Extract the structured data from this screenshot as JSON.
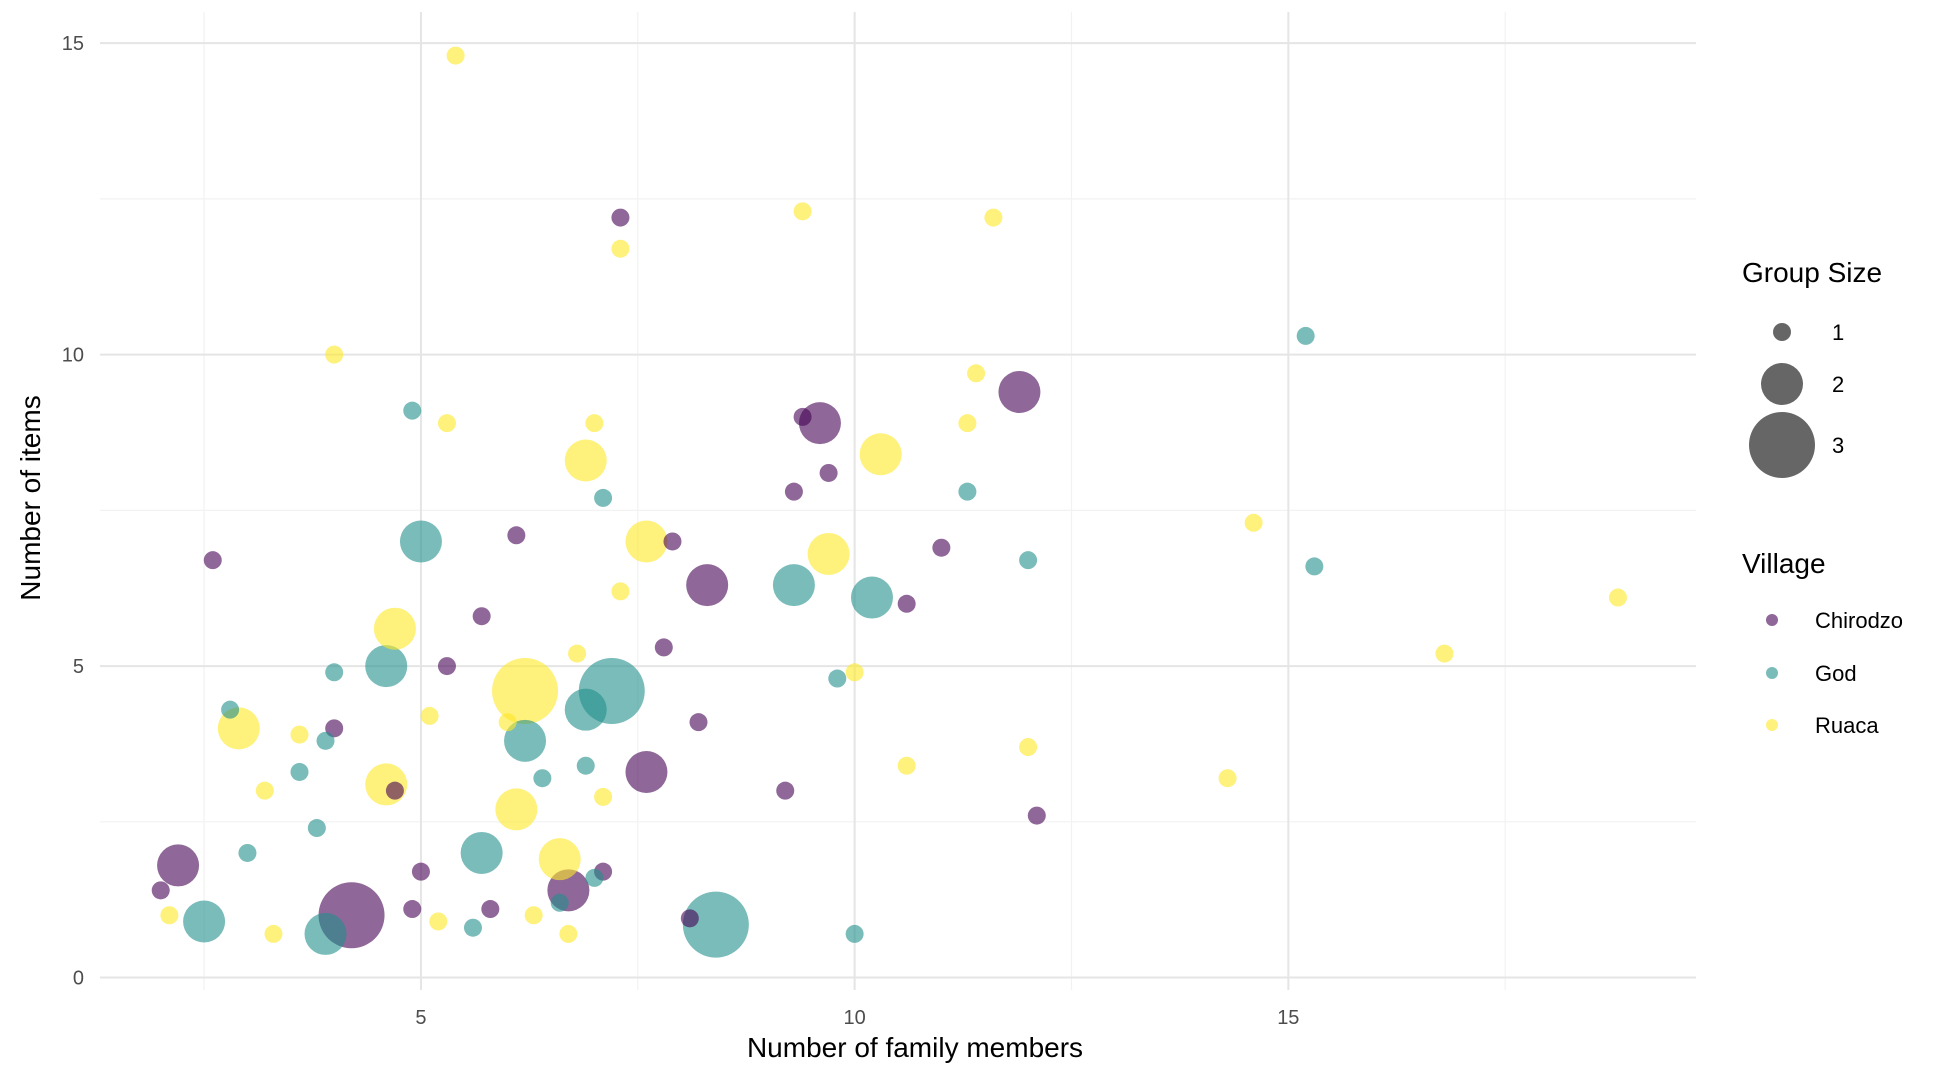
{
  "chart_data": {
    "type": "scatter",
    "title": "",
    "xlabel": "Number of family members",
    "ylabel": "Number of items",
    "xlim": [
      1.3,
      19.7
    ],
    "ylim": [
      -0.2,
      15.5
    ],
    "x_ticks": [
      5,
      10,
      15
    ],
    "y_ticks": [
      0,
      5,
      10,
      15
    ],
    "grid": true,
    "legend_position": "right",
    "size_legend": {
      "title": "Group Size",
      "entries": [
        1,
        2,
        3
      ]
    },
    "color_legend": {
      "title": "Village",
      "entries": [
        "Chirodzo",
        "God",
        "Ruaca"
      ]
    },
    "colors": {
      "Chirodzo": "#440154",
      "God": "#21908C",
      "Ruaca": "#FDE725"
    },
    "opacity": 0.6,
    "series": [
      {
        "name": "Chirodzo",
        "points": [
          {
            "x": 2.0,
            "y": 1.4,
            "size": 1
          },
          {
            "x": 2.2,
            "y": 1.8,
            "size": 2
          },
          {
            "x": 2.6,
            "y": 6.7,
            "size": 1
          },
          {
            "x": 4.0,
            "y": 4.0,
            "size": 1
          },
          {
            "x": 4.2,
            "y": 1.0,
            "size": 3
          },
          {
            "x": 4.7,
            "y": 3.0,
            "size": 1
          },
          {
            "x": 4.9,
            "y": 1.1,
            "size": 1
          },
          {
            "x": 5.0,
            "y": 1.7,
            "size": 1
          },
          {
            "x": 5.3,
            "y": 5.0,
            "size": 1
          },
          {
            "x": 5.7,
            "y": 5.8,
            "size": 1
          },
          {
            "x": 5.8,
            "y": 1.1,
            "size": 1
          },
          {
            "x": 6.1,
            "y": 7.1,
            "size": 1
          },
          {
            "x": 6.7,
            "y": 1.4,
            "size": 2
          },
          {
            "x": 7.1,
            "y": 1.7,
            "size": 1
          },
          {
            "x": 7.3,
            "y": 12.2,
            "size": 1
          },
          {
            "x": 7.6,
            "y": 3.3,
            "size": 2
          },
          {
            "x": 7.8,
            "y": 5.3,
            "size": 1
          },
          {
            "x": 7.9,
            "y": 7.0,
            "size": 1
          },
          {
            "x": 8.1,
            "y": 0.95,
            "size": 1
          },
          {
            "x": 8.2,
            "y": 4.1,
            "size": 1
          },
          {
            "x": 8.3,
            "y": 6.3,
            "size": 2
          },
          {
            "x": 9.2,
            "y": 3.0,
            "size": 1
          },
          {
            "x": 9.3,
            "y": 7.8,
            "size": 1
          },
          {
            "x": 9.4,
            "y": 9.0,
            "size": 1
          },
          {
            "x": 9.6,
            "y": 8.9,
            "size": 2
          },
          {
            "x": 9.7,
            "y": 8.1,
            "size": 1
          },
          {
            "x": 10.6,
            "y": 6.0,
            "size": 1
          },
          {
            "x": 11.0,
            "y": 6.9,
            "size": 1
          },
          {
            "x": 11.9,
            "y": 9.4,
            "size": 2
          },
          {
            "x": 12.1,
            "y": 2.6,
            "size": 1
          }
        ]
      },
      {
        "name": "God",
        "points": [
          {
            "x": 2.5,
            "y": 0.9,
            "size": 2
          },
          {
            "x": 2.8,
            "y": 4.3,
            "size": 1
          },
          {
            "x": 3.0,
            "y": 2.0,
            "size": 1
          },
          {
            "x": 3.6,
            "y": 3.3,
            "size": 1
          },
          {
            "x": 3.8,
            "y": 2.4,
            "size": 1
          },
          {
            "x": 3.9,
            "y": 3.8,
            "size": 1
          },
          {
            "x": 3.9,
            "y": 0.7,
            "size": 2
          },
          {
            "x": 4.0,
            "y": 4.9,
            "size": 1
          },
          {
            "x": 4.6,
            "y": 5.0,
            "size": 2
          },
          {
            "x": 4.9,
            "y": 9.1,
            "size": 1
          },
          {
            "x": 5.0,
            "y": 7.0,
            "size": 2
          },
          {
            "x": 5.6,
            "y": 0.8,
            "size": 1
          },
          {
            "x": 5.7,
            "y": 2.0,
            "size": 2
          },
          {
            "x": 6.2,
            "y": 3.8,
            "size": 2
          },
          {
            "x": 6.4,
            "y": 3.2,
            "size": 1
          },
          {
            "x": 6.6,
            "y": 1.2,
            "size": 1
          },
          {
            "x": 6.9,
            "y": 4.3,
            "size": 2
          },
          {
            "x": 6.9,
            "y": 3.4,
            "size": 1
          },
          {
            "x": 7.0,
            "y": 1.6,
            "size": 1
          },
          {
            "x": 7.1,
            "y": 7.7,
            "size": 1
          },
          {
            "x": 7.2,
            "y": 4.6,
            "size": 3
          },
          {
            "x": 8.4,
            "y": 0.85,
            "size": 3
          },
          {
            "x": 9.3,
            "y": 6.3,
            "size": 2
          },
          {
            "x": 9.8,
            "y": 4.8,
            "size": 1
          },
          {
            "x": 10.0,
            "y": 0.7,
            "size": 1
          },
          {
            "x": 10.2,
            "y": 6.1,
            "size": 2
          },
          {
            "x": 11.3,
            "y": 7.8,
            "size": 1
          },
          {
            "x": 12.0,
            "y": 6.7,
            "size": 1
          },
          {
            "x": 15.2,
            "y": 10.3,
            "size": 1
          },
          {
            "x": 15.3,
            "y": 6.6,
            "size": 1
          }
        ]
      },
      {
        "name": "Ruaca",
        "points": [
          {
            "x": 2.1,
            "y": 1.0,
            "size": 1
          },
          {
            "x": 2.9,
            "y": 4.0,
            "size": 2
          },
          {
            "x": 3.2,
            "y": 3.0,
            "size": 1
          },
          {
            "x": 3.3,
            "y": 0.7,
            "size": 1
          },
          {
            "x": 3.6,
            "y": 3.9,
            "size": 1
          },
          {
            "x": 4.0,
            "y": 10.0,
            "size": 1
          },
          {
            "x": 4.6,
            "y": 3.1,
            "size": 2
          },
          {
            "x": 4.7,
            "y": 5.6,
            "size": 2
          },
          {
            "x": 5.1,
            "y": 4.2,
            "size": 1
          },
          {
            "x": 5.2,
            "y": 0.9,
            "size": 1
          },
          {
            "x": 5.3,
            "y": 8.9,
            "size": 1
          },
          {
            "x": 5.4,
            "y": 14.8,
            "size": 1
          },
          {
            "x": 6.0,
            "y": 4.1,
            "size": 1
          },
          {
            "x": 6.1,
            "y": 2.7,
            "size": 2
          },
          {
            "x": 6.2,
            "y": 4.6,
            "size": 3
          },
          {
            "x": 6.3,
            "y": 1.0,
            "size": 1
          },
          {
            "x": 6.6,
            "y": 1.9,
            "size": 2
          },
          {
            "x": 6.7,
            "y": 0.7,
            "size": 1
          },
          {
            "x": 6.8,
            "y": 5.2,
            "size": 1
          },
          {
            "x": 6.9,
            "y": 8.3,
            "size": 2
          },
          {
            "x": 7.0,
            "y": 8.9,
            "size": 1
          },
          {
            "x": 7.1,
            "y": 2.9,
            "size": 1
          },
          {
            "x": 7.3,
            "y": 6.2,
            "size": 1
          },
          {
            "x": 7.3,
            "y": 11.7,
            "size": 1
          },
          {
            "x": 7.6,
            "y": 7.0,
            "size": 2
          },
          {
            "x": 9.4,
            "y": 12.3,
            "size": 1
          },
          {
            "x": 9.7,
            "y": 6.8,
            "size": 2
          },
          {
            "x": 10.0,
            "y": 4.9,
            "size": 1
          },
          {
            "x": 10.3,
            "y": 8.4,
            "size": 2
          },
          {
            "x": 10.6,
            "y": 3.4,
            "size": 1
          },
          {
            "x": 11.3,
            "y": 8.9,
            "size": 1
          },
          {
            "x": 11.4,
            "y": 9.7,
            "size": 1
          },
          {
            "x": 11.6,
            "y": 12.2,
            "size": 1
          },
          {
            "x": 12.0,
            "y": 3.7,
            "size": 1
          },
          {
            "x": 14.3,
            "y": 3.2,
            "size": 1
          },
          {
            "x": 14.6,
            "y": 7.3,
            "size": 1
          },
          {
            "x": 16.8,
            "y": 5.2,
            "size": 1
          },
          {
            "x": 18.8,
            "y": 6.1,
            "size": 1
          }
        ]
      }
    ]
  }
}
